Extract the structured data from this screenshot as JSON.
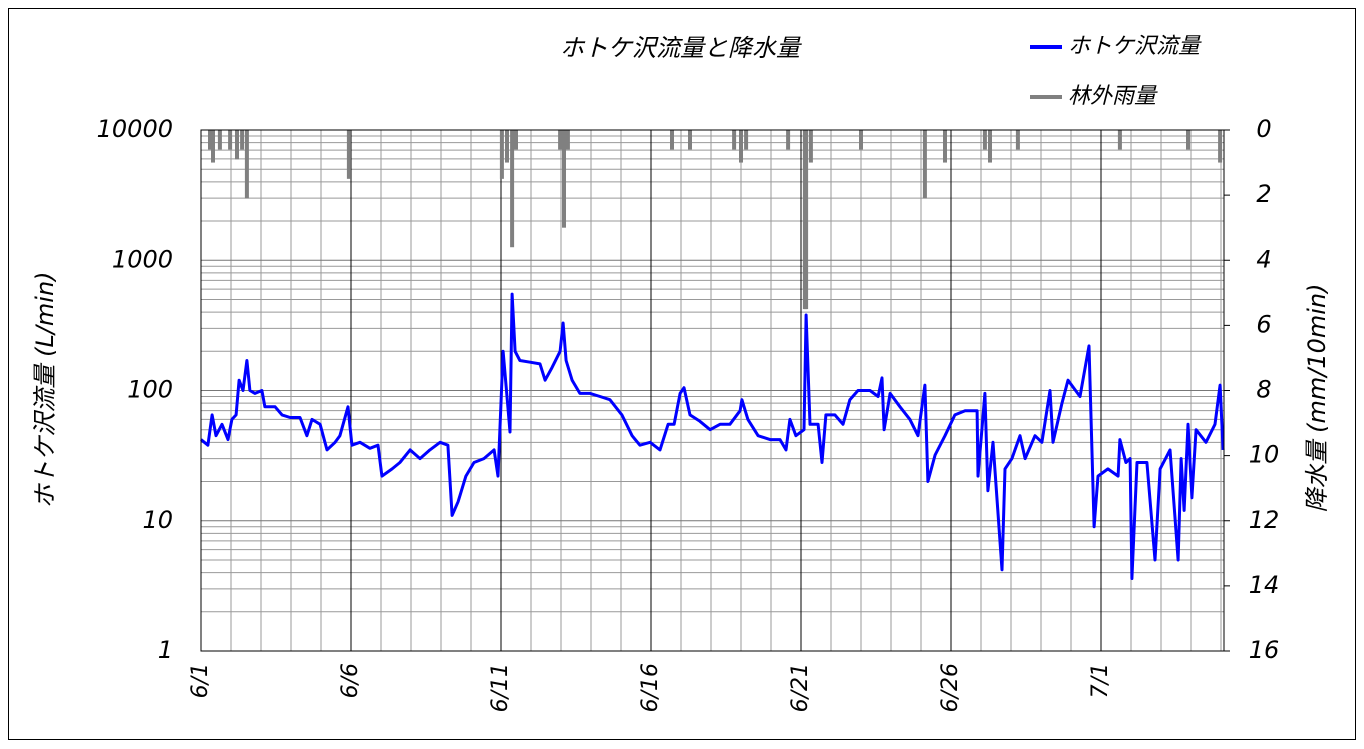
{
  "chart_data": {
    "type": "line",
    "title": "ホトケ沢流量と降水量",
    "y_label": "ホトケ沢流量 (L/min)",
    "y2_label": "降水量 (mm/10min)",
    "xlim": [
      0,
      34.1
    ],
    "xticks": [
      {
        "value": 0,
        "label": "6/1"
      },
      {
        "value": 5,
        "label": "6/6"
      },
      {
        "value": 10,
        "label": "6/11"
      },
      {
        "value": 15,
        "label": "6/16"
      },
      {
        "value": 20,
        "label": "6/21"
      },
      {
        "value": 25,
        "label": "6/26"
      },
      {
        "value": 30,
        "label": "7/1"
      }
    ],
    "ylim": [
      1,
      10000
    ],
    "ylog": true,
    "yticks": [
      1,
      10,
      100,
      1000,
      10000
    ],
    "y2lim": [
      16,
      0
    ],
    "y2ticks": [
      0,
      2,
      4,
      6,
      8,
      10,
      12,
      14,
      16
    ],
    "grid": true,
    "legend": "upper right",
    "series": [
      {
        "name": "ホトケ沢流量",
        "type": "line",
        "color": "#0000ff",
        "x": [
          0.0,
          0.23,
          0.37,
          0.5,
          0.7,
          0.9,
          1.03,
          1.17,
          1.27,
          1.4,
          1.53,
          1.63,
          1.8,
          2.03,
          2.13,
          2.47,
          2.7,
          2.97,
          3.3,
          3.53,
          3.7,
          3.97,
          4.2,
          4.47,
          4.63,
          4.9,
          5.03,
          5.3,
          5.63,
          5.9,
          6.03,
          6.37,
          6.63,
          6.97,
          7.3,
          7.63,
          7.97,
          8.23,
          8.37,
          8.57,
          8.83,
          9.1,
          9.43,
          9.77,
          9.9,
          10.07,
          10.2,
          10.3,
          10.37,
          10.47,
          10.63,
          10.97,
          11.3,
          11.47,
          11.7,
          11.97,
          12.07,
          12.17,
          12.37,
          12.63,
          12.97,
          13.3,
          13.63,
          14.03,
          14.37,
          14.63,
          14.97,
          15.3,
          15.57,
          15.77,
          15.97,
          16.1,
          16.3,
          16.63,
          16.97,
          17.3,
          17.63,
          17.97,
          18.03,
          18.23,
          18.57,
          18.97,
          19.3,
          19.5,
          19.63,
          19.83,
          20.1,
          20.17,
          20.3,
          20.57,
          20.7,
          20.83,
          21.13,
          21.4,
          21.63,
          21.9,
          22.3,
          22.57,
          22.7,
          22.77,
          22.97,
          23.3,
          23.63,
          23.9,
          24.13,
          24.23,
          24.47,
          24.8,
          25.13,
          25.47,
          25.87,
          25.9,
          26.13,
          26.23,
          26.4,
          26.7,
          26.8,
          27.03,
          27.3,
          27.47,
          27.8,
          28.03,
          28.3,
          28.4,
          28.7,
          28.9,
          29.3,
          29.6,
          29.77,
          29.9,
          30.23,
          30.57,
          30.63,
          30.83,
          30.97,
          31.03,
          31.2,
          31.53,
          31.8,
          31.97,
          32.3,
          32.57,
          32.67,
          32.77,
          32.9,
          33.03,
          33.17,
          33.5,
          33.8,
          33.97,
          34.07
        ],
        "values": [
          42,
          38,
          65,
          45,
          55,
          42,
          60,
          65,
          120,
          100,
          170,
          100,
          95,
          100,
          75,
          75,
          65,
          62,
          62,
          45,
          60,
          55,
          35,
          40,
          45,
          75,
          38,
          40,
          36,
          38,
          22,
          25,
          28,
          35,
          30,
          35,
          40,
          38,
          11,
          14,
          22,
          28,
          30,
          35,
          22,
          200,
          90,
          48,
          550,
          200,
          170,
          165,
          160,
          120,
          150,
          200,
          330,
          170,
          120,
          95,
          95,
          90,
          85,
          65,
          45,
          38,
          40,
          35,
          55,
          55,
          95,
          105,
          65,
          58,
          50,
          55,
          55,
          70,
          85,
          60,
          45,
          42,
          42,
          35,
          60,
          45,
          50,
          380,
          55,
          55,
          28,
          65,
          65,
          55,
          85,
          100,
          100,
          90,
          125,
          50,
          95,
          75,
          60,
          45,
          110,
          20,
          32,
          45,
          65,
          70,
          70,
          22,
          95,
          17,
          40,
          4.2,
          25,
          30,
          45,
          30,
          45,
          40,
          100,
          40,
          80,
          120,
          90,
          220,
          9,
          22,
          25,
          22,
          42,
          28,
          30,
          3.6,
          28,
          28,
          5,
          25,
          35,
          5,
          30,
          12,
          55,
          15,
          50,
          40,
          55,
          110,
          35
        ]
      },
      {
        "name": "林外雨量",
        "type": "bar",
        "axis": "y2",
        "color": "#808080",
        "x": [
          0.3,
          0.4,
          0.63,
          0.97,
          1.2,
          1.37,
          1.53,
          4.93,
          10.03,
          10.2,
          10.37,
          10.5,
          11.97,
          12.1,
          12.23,
          15.7,
          16.3,
          17.77,
          18.0,
          18.17,
          19.57,
          20.13,
          20.17,
          20.33,
          22.0,
          24.13,
          24.8,
          26.13,
          26.3,
          27.23,
          30.63,
          32.9,
          33.97
        ],
        "values": [
          0.6,
          1.0,
          0.6,
          0.6,
          0.9,
          0.6,
          2.1,
          1.5,
          1.5,
          1.0,
          3.6,
          0.6,
          0.6,
          3.0,
          0.6,
          0.6,
          0.6,
          0.6,
          1.0,
          0.6,
          0.6,
          5.5,
          5.5,
          1.0,
          0.6,
          2.1,
          1.0,
          0.6,
          1.0,
          0.6,
          0.6,
          0.6,
          1.0
        ]
      }
    ]
  }
}
